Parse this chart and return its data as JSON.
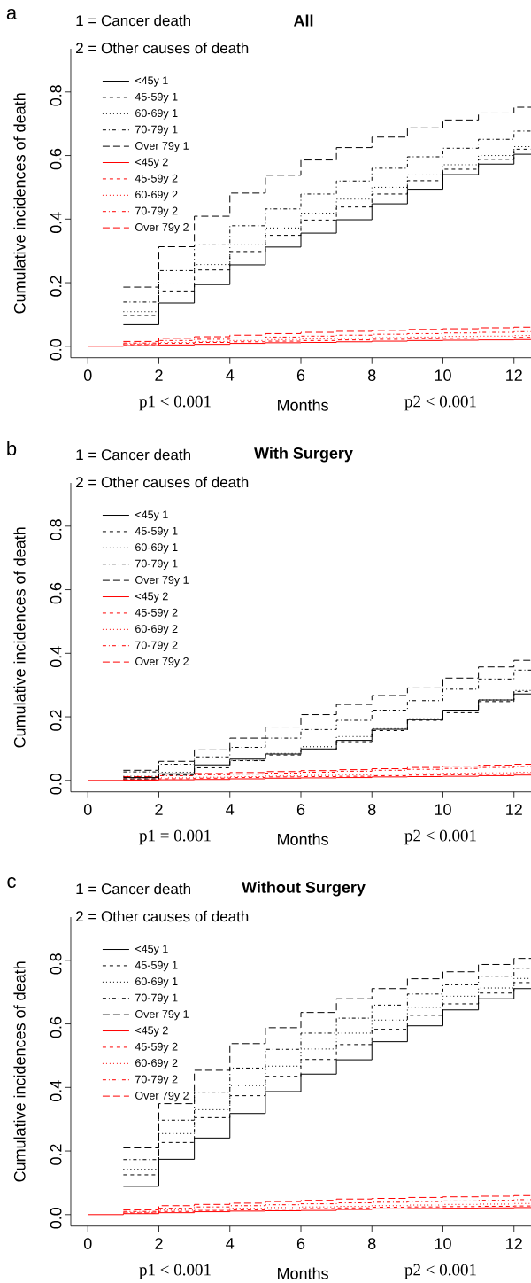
{
  "chart_data": [
    {
      "type": "step",
      "title": "All",
      "xlabel": "Months",
      "ylabel": "Cumulative incidences of death",
      "annotations": [
        "a",
        "1 = Cancer death",
        "2 = Other causes of death",
        "p1 < 0.001",
        "p2 < 0.001"
      ],
      "x": [
        0,
        1,
        2,
        3,
        4,
        5,
        6,
        7,
        8,
        9,
        10,
        11,
        12,
        12.48
      ],
      "xlim": [
        -0.48,
        12.48
      ],
      "ylim": [
        -0.036,
        0.936
      ],
      "xticks": [
        0,
        2,
        4,
        6,
        8,
        10,
        12
      ],
      "yticks": [
        {
          "value": 0,
          "label": "0.0"
        },
        {
          "value": 0.2,
          "label": "0.2"
        },
        {
          "value": 0.4,
          "label": "0.4"
        },
        {
          "value": 0.6,
          "label": "0.6"
        },
        {
          "value": 0.8,
          "label": "0.8"
        }
      ],
      "legend": "top left",
      "series": [
        {
          "name": "<45y 1",
          "color": "#000000",
          "line_style": "solid",
          "values": [
            null,
            0.068,
            0.136,
            0.194,
            0.256,
            0.312,
            0.356,
            0.398,
            0.448,
            0.494,
            0.54,
            0.573,
            0.604,
            0.604
          ]
        },
        {
          "name": "45-59y 1",
          "color": "#000000",
          "line_style": "dashed",
          "values": [
            null,
            0.097,
            0.174,
            0.24,
            0.298,
            0.349,
            0.397,
            0.438,
            0.479,
            0.521,
            0.557,
            0.588,
            0.62,
            0.62
          ]
        },
        {
          "name": "60-69y 1",
          "color": "#000000",
          "line_style": "dotted",
          "values": [
            null,
            0.109,
            0.196,
            0.257,
            0.319,
            0.372,
            0.419,
            0.463,
            0.5,
            0.539,
            0.571,
            0.6,
            0.628,
            0.628
          ]
        },
        {
          "name": "70-79y 1",
          "color": "#000000",
          "line_style": "dashdot",
          "values": [
            null,
            0.139,
            0.238,
            0.319,
            0.379,
            0.432,
            0.479,
            0.52,
            0.56,
            0.596,
            0.623,
            0.651,
            0.677,
            0.677
          ]
        },
        {
          "name": "Over 79y 1",
          "color": "#000000",
          "line_style": "longdash",
          "values": [
            null,
            0.186,
            0.313,
            0.409,
            0.482,
            0.538,
            0.586,
            0.625,
            0.658,
            0.687,
            0.712,
            0.734,
            0.752,
            0.752
          ]
        },
        {
          "name": "<45y 2",
          "color": "#ff0000",
          "line_style": "solid",
          "values": [
            0,
            0.002,
            0.004,
            0.006,
            0.009,
            0.011,
            0.012,
            0.014,
            0.016,
            0.018,
            0.019,
            0.02,
            0.021,
            0.021
          ]
        },
        {
          "name": "45-59y 2",
          "color": "#ff0000",
          "line_style": "dashed",
          "values": [
            null,
            0.005,
            0.009,
            0.012,
            0.014,
            0.016,
            0.018,
            0.02,
            0.022,
            0.024,
            0.025,
            0.026,
            0.028,
            0.028
          ]
        },
        {
          "name": "60-69y 2",
          "color": "#ff0000",
          "line_style": "dotted",
          "values": [
            null,
            0.007,
            0.012,
            0.015,
            0.018,
            0.021,
            0.023,
            0.025,
            0.027,
            0.029,
            0.031,
            0.032,
            0.034,
            0.034
          ]
        },
        {
          "name": "70-79y 2",
          "color": "#ff0000",
          "line_style": "dashdot",
          "values": [
            null,
            0.01,
            0.018,
            0.022,
            0.026,
            0.029,
            0.032,
            0.035,
            0.038,
            0.04,
            0.042,
            0.044,
            0.046,
            0.046
          ]
        },
        {
          "name": "Over 79y 2",
          "color": "#ff0000",
          "line_style": "longdash",
          "values": [
            null,
            0.015,
            0.025,
            0.03,
            0.035,
            0.04,
            0.044,
            0.047,
            0.05,
            0.053,
            0.055,
            0.058,
            0.06,
            0.06
          ]
        }
      ]
    },
    {
      "type": "step",
      "title": "With Surgery",
      "xlabel": "Months",
      "ylabel": "Cumulative incidences of death",
      "annotations": [
        "b",
        "1 = Cancer death",
        "2 = Other causes of death",
        "p1 = 0.001",
        "p2 < 0.001"
      ],
      "x": [
        0,
        1,
        2,
        3,
        4,
        5,
        6,
        7,
        8,
        9,
        10,
        11,
        12,
        12.48
      ],
      "xlim": [
        -0.48,
        12.48
      ],
      "ylim": [
        -0.036,
        0.936
      ],
      "xticks": [
        0,
        2,
        4,
        6,
        8,
        10,
        12
      ],
      "yticks": [
        {
          "value": 0,
          "label": "0.0"
        },
        {
          "value": 0.2,
          "label": "0.2"
        },
        {
          "value": 0.4,
          "label": "0.4"
        },
        {
          "value": 0.6,
          "label": "0.6"
        },
        {
          "value": 0.8,
          "label": "0.8"
        }
      ],
      "legend": "top left",
      "series": [
        {
          "name": "<45y 1",
          "color": "#000000",
          "line_style": "solid",
          "values": [
            null,
            0.009,
            0.021,
            0.049,
            0.067,
            0.083,
            0.099,
            0.126,
            0.161,
            0.191,
            0.221,
            0.253,
            0.272,
            0.272
          ]
        },
        {
          "name": "45-59y 1",
          "color": "#000000",
          "line_style": "dashed",
          "values": [
            null,
            0.005,
            0.017,
            0.04,
            0.062,
            0.08,
            0.096,
            0.122,
            0.157,
            0.189,
            0.213,
            0.248,
            0.28,
            0.28
          ]
        },
        {
          "name": "60-69y 1",
          "color": "#000000",
          "line_style": "dotted",
          "values": [
            null,
            0.013,
            0.026,
            0.046,
            0.063,
            0.085,
            0.106,
            0.138,
            0.163,
            0.194,
            0.219,
            0.253,
            0.283,
            0.283
          ]
        },
        {
          "name": "70-79y 1",
          "color": "#000000",
          "line_style": "dashdot",
          "values": [
            null,
            0.027,
            0.051,
            0.074,
            0.104,
            0.133,
            0.16,
            0.189,
            0.221,
            0.251,
            0.287,
            0.319,
            0.347,
            0.347
          ]
        },
        {
          "name": "Over 79y 1",
          "color": "#000000",
          "line_style": "longdash",
          "values": [
            null,
            0.032,
            0.06,
            0.096,
            0.133,
            0.168,
            0.207,
            0.239,
            0.267,
            0.291,
            0.322,
            0.357,
            0.378,
            0.378
          ]
        },
        {
          "name": "<45y 2",
          "color": "#ff0000",
          "line_style": "solid",
          "values": [
            0,
            0.001,
            0.002,
            0.003,
            0.005,
            0.007,
            0.008,
            0.009,
            0.011,
            0.012,
            0.013,
            0.015,
            0.017,
            0.017
          ]
        },
        {
          "name": "45-59y 2",
          "color": "#ff0000",
          "line_style": "dashed",
          "values": [
            null,
            0.002,
            0.005,
            0.007,
            0.009,
            0.011,
            0.012,
            0.013,
            0.015,
            0.017,
            0.018,
            0.019,
            0.021,
            0.021
          ]
        },
        {
          "name": "60-69y 2",
          "color": "#ff0000",
          "line_style": "dotted",
          "values": [
            null,
            0.004,
            0.008,
            0.01,
            0.012,
            0.014,
            0.016,
            0.018,
            0.02,
            0.021,
            0.023,
            0.024,
            0.026,
            0.026
          ]
        },
        {
          "name": "70-79y 2",
          "color": "#ff0000",
          "line_style": "dashdot",
          "values": [
            null,
            0.008,
            0.015,
            0.018,
            0.02,
            0.023,
            0.026,
            0.029,
            0.032,
            0.035,
            0.038,
            0.041,
            0.044,
            0.044
          ]
        },
        {
          "name": "Over 79y 2",
          "color": "#ff0000",
          "line_style": "longdash",
          "values": [
            null,
            0.012,
            0.02,
            0.022,
            0.025,
            0.028,
            0.031,
            0.034,
            0.037,
            0.041,
            0.045,
            0.048,
            0.051,
            0.051
          ]
        }
      ]
    },
    {
      "type": "step",
      "title": "Without Surgery",
      "xlabel": "Months",
      "ylabel": "Cumulative incidences of death",
      "annotations": [
        "c",
        "1 = Cancer death",
        "2 = Other causes of death",
        "p1 < 0.001",
        "p2 < 0.001"
      ],
      "x": [
        0,
        1,
        2,
        3,
        4,
        5,
        6,
        7,
        8,
        9,
        10,
        11,
        12,
        12.48
      ],
      "xlim": [
        -0.48,
        12.48
      ],
      "ylim": [
        -0.036,
        0.936
      ],
      "xticks": [
        0,
        2,
        4,
        6,
        8,
        10,
        12
      ],
      "yticks": [
        {
          "value": 0,
          "label": "0.0"
        },
        {
          "value": 0.2,
          "label": "0.2"
        },
        {
          "value": 0.4,
          "label": "0.4"
        },
        {
          "value": 0.6,
          "label": "0.6"
        },
        {
          "value": 0.8,
          "label": "0.8"
        }
      ],
      "legend": "top left",
      "series": [
        {
          "name": "<45y 1",
          "color": "#000000",
          "line_style": "solid",
          "values": [
            null,
            0.089,
            0.174,
            0.241,
            0.318,
            0.387,
            0.442,
            0.487,
            0.544,
            0.594,
            0.644,
            0.679,
            0.711,
            0.711
          ]
        },
        {
          "name": "45-59y 1",
          "color": "#000000",
          "line_style": "dashed",
          "values": [
            null,
            0.125,
            0.227,
            0.305,
            0.374,
            0.435,
            0.488,
            0.535,
            0.583,
            0.627,
            0.663,
            0.697,
            0.73,
            0.73
          ]
        },
        {
          "name": "60-69y 1",
          "color": "#000000",
          "line_style": "dotted",
          "values": [
            null,
            0.143,
            0.255,
            0.33,
            0.406,
            0.467,
            0.521,
            0.571,
            0.612,
            0.652,
            0.687,
            0.713,
            0.743,
            0.743
          ]
        },
        {
          "name": "70-79y 1",
          "color": "#000000",
          "line_style": "dashdot",
          "values": [
            null,
            0.173,
            0.297,
            0.385,
            0.461,
            0.52,
            0.571,
            0.618,
            0.659,
            0.694,
            0.723,
            0.75,
            0.775,
            0.775
          ]
        },
        {
          "name": "Over 79y 1",
          "color": "#000000",
          "line_style": "longdash",
          "values": [
            null,
            0.21,
            0.349,
            0.454,
            0.538,
            0.588,
            0.636,
            0.679,
            0.711,
            0.742,
            0.764,
            0.787,
            0.806,
            0.806
          ]
        },
        {
          "name": "<45y 2",
          "color": "#ff0000",
          "line_style": "solid",
          "values": [
            0,
            0.003,
            0.006,
            0.009,
            0.011,
            0.012,
            0.013,
            0.016,
            0.018,
            0.019,
            0.02,
            0.021,
            0.022,
            0.022
          ]
        },
        {
          "name": "45-59y 2",
          "color": "#ff0000",
          "line_style": "dashed",
          "values": [
            null,
            0.005,
            0.01,
            0.013,
            0.015,
            0.017,
            0.019,
            0.021,
            0.023,
            0.024,
            0.025,
            0.026,
            0.027,
            0.027
          ]
        },
        {
          "name": "60-69y 2",
          "color": "#ff0000",
          "line_style": "dotted",
          "values": [
            null,
            0.007,
            0.014,
            0.017,
            0.02,
            0.022,
            0.024,
            0.026,
            0.028,
            0.03,
            0.032,
            0.033,
            0.035,
            0.035
          ]
        },
        {
          "name": "70-79y 2",
          "color": "#ff0000",
          "line_style": "dashdot",
          "values": [
            null,
            0.01,
            0.02,
            0.024,
            0.028,
            0.031,
            0.034,
            0.037,
            0.039,
            0.041,
            0.043,
            0.045,
            0.047,
            0.047
          ]
        },
        {
          "name": "Over 79y 2",
          "color": "#ff0000",
          "line_style": "longdash",
          "values": [
            null,
            0.015,
            0.028,
            0.032,
            0.036,
            0.041,
            0.045,
            0.049,
            0.051,
            0.054,
            0.056,
            0.058,
            0.06,
            0.06
          ]
        }
      ]
    }
  ]
}
